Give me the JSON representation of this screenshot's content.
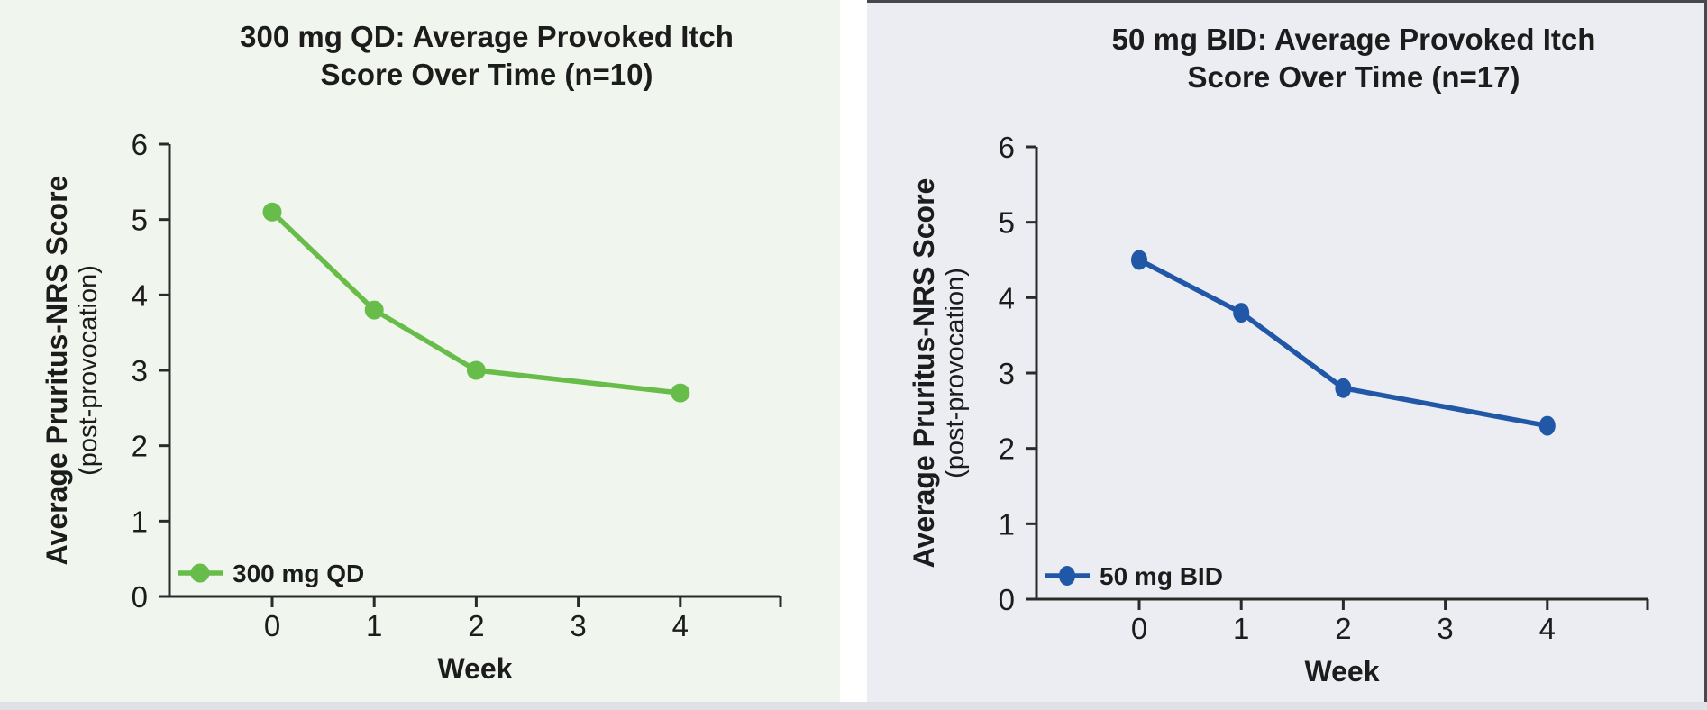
{
  "page": {
    "background_color": "#ffffff",
    "gutter_color": "#ffffff",
    "bottom_strip_color": "#e0e1e6",
    "text_color": "#1c1c1c",
    "axis_color": "#2a2a2a"
  },
  "chart_data": [
    {
      "type": "line",
      "title": "300 mg QD: Average Provoked Itch Score Over Time (n=10)",
      "title_lines": [
        "300 mg QD: Average Provoked Itch",
        "Score Over Time (n=10)"
      ],
      "xlabel": "Week",
      "ylabel": "Average Pruritus-NRS Score",
      "ylabel_sub": "(post-provocation)",
      "series": [
        {
          "name": "300 mg QD",
          "x": [
            0,
            1,
            2,
            4
          ],
          "values": [
            5.1,
            3.8,
            3.0,
            2.7
          ],
          "color": "#68bd4a"
        }
      ],
      "legend_label": "300 mg QD",
      "legend_position": "lower left",
      "xticks": [
        "0",
        "1",
        "2",
        "3",
        "4"
      ],
      "xtick_values": [
        0,
        1,
        2,
        3,
        4
      ],
      "yticks": [
        "0",
        "1",
        "2",
        "3",
        "4",
        "5",
        "6"
      ],
      "ytick_values": [
        0,
        1,
        2,
        3,
        4,
        5,
        6
      ],
      "xlim": [
        -1,
        5
      ],
      "ylim": [
        0,
        6
      ],
      "grid": false,
      "panel_background": "#f0f6ed"
    },
    {
      "type": "line",
      "title": "50 mg BID: Average Provoked Itch Score Over Time (n=17)",
      "title_lines": [
        "50 mg BID: Average Provoked Itch",
        "Score Over Time (n=17)"
      ],
      "xlabel": "Week",
      "ylabel": "Average Pruritus-NRS Score",
      "ylabel_sub": "(post-provocation)",
      "series": [
        {
          "name": "50 mg BID",
          "x": [
            0,
            1,
            2,
            4
          ],
          "values": [
            4.5,
            3.8,
            2.8,
            2.3
          ],
          "color": "#2057a7"
        }
      ],
      "legend_label": "50 mg BID",
      "legend_position": "lower left",
      "xticks": [
        "0",
        "1",
        "2",
        "3",
        "4"
      ],
      "xtick_values": [
        0,
        1,
        2,
        3,
        4
      ],
      "yticks": [
        "0",
        "1",
        "2",
        "3",
        "4",
        "5",
        "6"
      ],
      "ytick_values": [
        0,
        1,
        2,
        3,
        4,
        5,
        6
      ],
      "xlim": [
        -1,
        5
      ],
      "ylim": [
        0,
        6
      ],
      "grid": false,
      "panel_background": "#ebedf2"
    }
  ]
}
